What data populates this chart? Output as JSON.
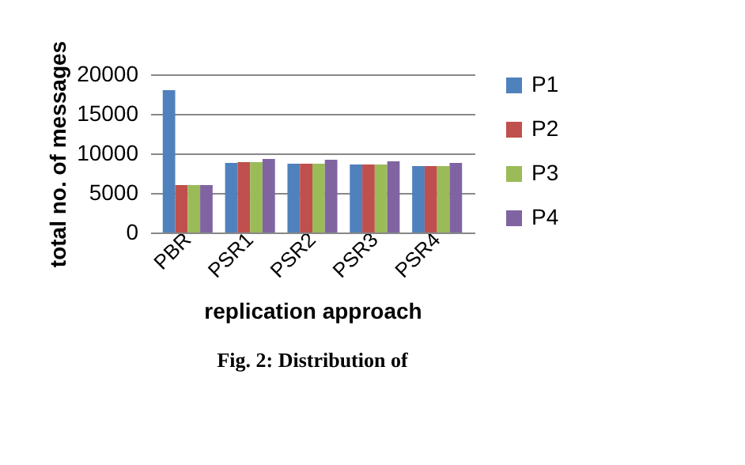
{
  "chart_data": {
    "type": "bar",
    "xlabel": "replication approach",
    "ylabel": "total no. of messages",
    "categories": [
      "PBR",
      "PSR1",
      "PSR2",
      "PSR3",
      "PSR4"
    ],
    "series": [
      {
        "name": "P1",
        "color": "#4f81bd",
        "values": [
          18000,
          8800,
          8700,
          8600,
          8400
        ]
      },
      {
        "name": "P2",
        "color": "#c0504d",
        "values": [
          6000,
          8900,
          8700,
          8600,
          8400
        ]
      },
      {
        "name": "P3",
        "color": "#9bbb59",
        "values": [
          6000,
          8900,
          8700,
          8600,
          8400
        ]
      },
      {
        "name": "P4",
        "color": "#8064a2",
        "values": [
          6000,
          9300,
          9200,
          9000,
          8800
        ]
      }
    ],
    "ylim": [
      0,
      20000
    ],
    "yticks": [
      0,
      5000,
      10000,
      15000,
      20000
    ],
    "grid": "y",
    "legend": "right",
    "annotations": [
      "Fig. 2: Distribution of"
    ]
  }
}
